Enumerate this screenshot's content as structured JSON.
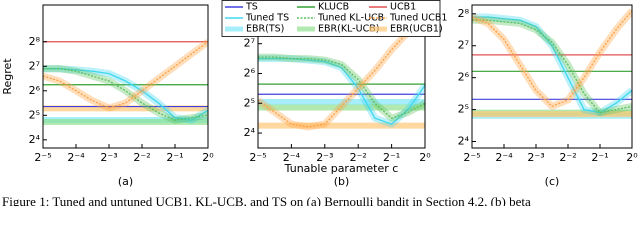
{
  "caption": "Figure 1: Tuned and untuned UCB1, KL-UCB, and TS on (a) Bernoulli bandit in Section 4.2, (b) beta",
  "chart_data": [
    {
      "type": "line",
      "label": "(a)",
      "ylabel": "Regret",
      "log_x": 2,
      "log_y": 2,
      "x": [
        0.03125,
        0.0442,
        0.0625,
        0.0884,
        0.125,
        0.1768,
        0.25,
        0.3536,
        0.5,
        0.7071,
        1
      ],
      "xlim": [
        0.03125,
        1
      ],
      "xticks": [
        {
          "value": 0.03125,
          "label": "2⁻⁵"
        },
        {
          "value": 0.0625,
          "label": "2⁻⁴"
        },
        {
          "value": 0.125,
          "label": "2⁻³"
        },
        {
          "value": 0.25,
          "label": "2⁻²"
        },
        {
          "value": 0.5,
          "label": "2⁻¹"
        },
        {
          "value": 1,
          "label": "2⁰"
        }
      ],
      "ylim": [
        12.7,
        724
      ],
      "yticks": [
        {
          "value": 16,
          "label": "2⁴"
        },
        {
          "value": 32,
          "label": "2⁵"
        },
        {
          "value": 64,
          "label": "2⁶"
        },
        {
          "value": 128,
          "label": "2⁷"
        },
        {
          "value": 256,
          "label": "2⁸"
        }
      ],
      "series": [
        {
          "color": "#4040e0",
          "style": "solid",
          "value": 41
        },
        {
          "color": "#33a033",
          "style": "solid",
          "value": 76
        },
        {
          "color": "#e05050",
          "style": "solid",
          "value": 256
        },
        {
          "color": "#40d8f0",
          "style": "solid",
          "values": [
            119.4,
            119.4,
            115.4,
            111.4,
            104,
            84.4,
            64,
            45.3,
            29.9,
            27.9,
            36.8
          ]
        },
        {
          "color": "#5cc05c",
          "style": "dotted",
          "values": [
            119.4,
            119.4,
            111.4,
            97,
            84.4,
            64,
            45.3,
            34.3,
            27.9,
            29.9,
            32
          ]
        },
        {
          "color": "#ffa040",
          "style": "dotted",
          "values": [
            97,
            84.4,
            64,
            48.5,
            39.4,
            45.3,
            64,
            90.5,
            128,
            181,
            256
          ]
        },
        {
          "color": "#80e8f8",
          "style": "band",
          "value": 28
        },
        {
          "color": "#90e090",
          "style": "band",
          "value": 26.5
        },
        {
          "color": "#ffc878",
          "style": "band",
          "value": 39
        }
      ]
    },
    {
      "type": "line",
      "label": "(b)",
      "xlabel": "Tunable parameter c",
      "log_x": 2,
      "log_y": 2,
      "legend": "top",
      "x": [
        0.03125,
        0.0442,
        0.0625,
        0.0884,
        0.125,
        0.1768,
        0.25,
        0.3536,
        0.5,
        0.7071,
        1
      ],
      "xlim": [
        0.03125,
        1
      ],
      "xticks": [
        {
          "value": 0.03125,
          "label": "2⁻⁵"
        },
        {
          "value": 0.0625,
          "label": "2⁻⁴"
        },
        {
          "value": 0.125,
          "label": "2⁻³"
        },
        {
          "value": 0.25,
          "label": "2⁻²"
        },
        {
          "value": 0.5,
          "label": "2⁻¹"
        },
        {
          "value": 1,
          "label": "2⁰"
        }
      ],
      "ylim": [
        11.3,
        315
      ],
      "yticks": [
        {
          "value": 16,
          "label": "2⁴"
        },
        {
          "value": 32,
          "label": "2⁵"
        },
        {
          "value": 64,
          "label": "2⁶"
        },
        {
          "value": 128,
          "label": "2⁷"
        },
        {
          "value": 256,
          "label": "2⁸"
        }
      ],
      "series": [
        {
          "name": "TS",
          "color": "#4040e0",
          "style": "solid",
          "value": 39.5
        },
        {
          "name": "KLUCB",
          "color": "#33a033",
          "style": "solid",
          "value": 50
        },
        {
          "name": "UCB1",
          "color": "#e05050",
          "style": "solid",
          "value": 256
        },
        {
          "name": "Tuned TS",
          "color": "#40d8f0",
          "style": "solid",
          "values": [
            90.5,
            90.5,
            90.5,
            87.4,
            84.4,
            73.5,
            45.3,
            22.6,
            19.7,
            27.9,
            48.5
          ]
        },
        {
          "name": "Tuned KL-UCB",
          "color": "#5cc05c",
          "style": "dotted",
          "values": [
            93.7,
            93.7,
            90.5,
            90.5,
            87.4,
            78.8,
            55.7,
            32,
            22.6,
            26,
            32
          ]
        },
        {
          "name": "Tuned UCB1",
          "color": "#ffa040",
          "style": "dotted",
          "values": [
            34.3,
            26,
            19.7,
            18.4,
            19.7,
            29.9,
            45.3,
            68.6,
            111.4,
            168.9,
            256
          ]
        },
        {
          "name": "EBR(TS)",
          "color": "#80e8f8",
          "style": "band",
          "value": 33
        },
        {
          "name": "EBR(KL-UCB)",
          "color": "#90e090",
          "style": "band",
          "value": 29
        },
        {
          "name": "EBR(UCB1)",
          "color": "#ffc878",
          "style": "band",
          "value": 19
        }
      ]
    },
    {
      "type": "line",
      "label": "(c)",
      "log_x": 2,
      "log_y": 2,
      "x": [
        0.03125,
        0.0442,
        0.0625,
        0.0884,
        0.125,
        0.1768,
        0.25,
        0.3536,
        0.5,
        0.7071,
        1
      ],
      "xlim": [
        0.03125,
        1
      ],
      "xticks": [
        {
          "value": 0.03125,
          "label": "2⁻⁵"
        },
        {
          "value": 0.0625,
          "label": "2⁻⁴"
        },
        {
          "value": 0.125,
          "label": "2⁻³"
        },
        {
          "value": 0.25,
          "label": "2⁻²"
        },
        {
          "value": 0.5,
          "label": "2⁻¹"
        },
        {
          "value": 1,
          "label": "2⁰"
        }
      ],
      "ylim": [
        13.9,
        310
      ],
      "yticks": [
        {
          "value": 16,
          "label": "2⁴"
        },
        {
          "value": 32,
          "label": "2⁵"
        },
        {
          "value": 64,
          "label": "2⁶"
        },
        {
          "value": 128,
          "label": "2⁷"
        },
        {
          "value": 256,
          "label": "2⁸"
        }
      ],
      "series": [
        {
          "color": "#4040e0",
          "style": "solid",
          "value": 40
        },
        {
          "color": "#33a033",
          "style": "solid",
          "value": 73.5
        },
        {
          "color": "#e05050",
          "style": "solid",
          "value": 105
        },
        {
          "color": "#40d8f0",
          "style": "solid",
          "values": [
            238.9,
            238.9,
            230.7,
            222.9,
            194,
            128,
            64,
            32,
            29.9,
            36.8,
            48.5
          ]
        },
        {
          "color": "#5cc05c",
          "style": "dotted",
          "values": [
            222.9,
            222.9,
            215,
            207.9,
            181,
            137.2,
            84.4,
            45.3,
            29.9,
            32,
            34.3
          ]
        },
        {
          "color": "#ffa040",
          "style": "dotted",
          "values": [
            238.9,
            207.9,
            147,
            84.4,
            48.5,
            34.3,
            39.4,
            64,
            111.4,
            181,
            274.4
          ]
        },
        {
          "color": "#80e8f8",
          "style": "band",
          "value": 28
        },
        {
          "color": "#90e090",
          "style": "band",
          "value": 30
        },
        {
          "color": "#ffc878",
          "style": "band",
          "value": 29
        }
      ]
    }
  ]
}
